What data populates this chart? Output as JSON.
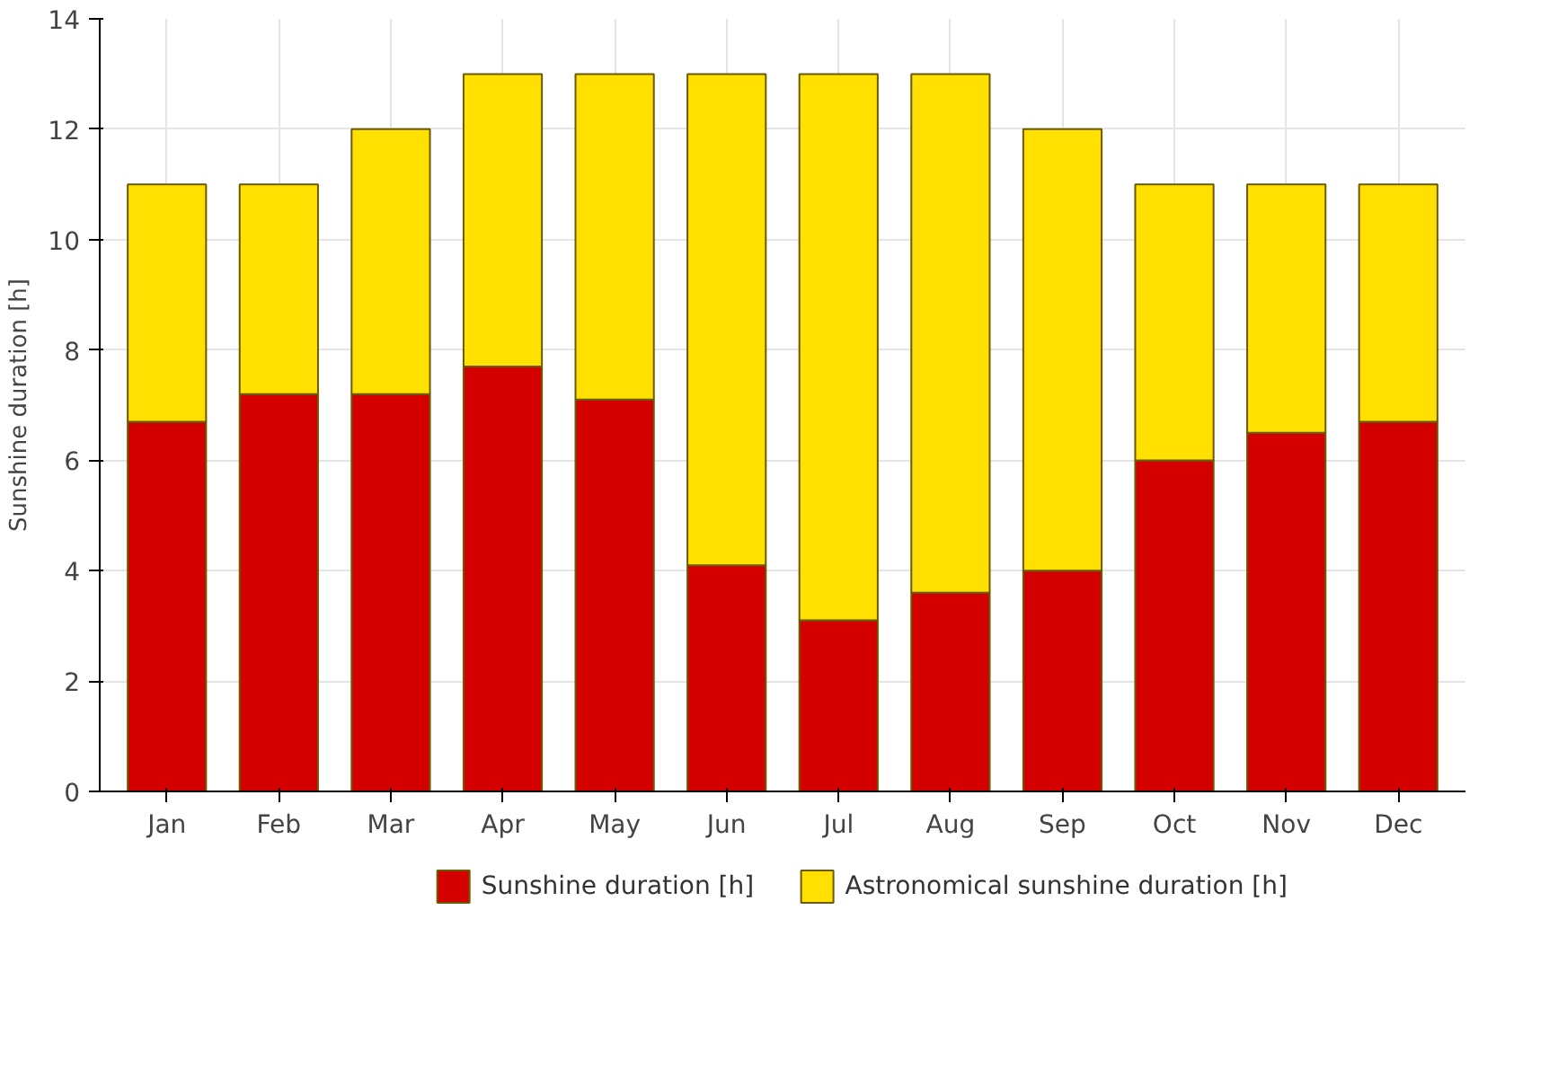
{
  "chart_data": {
    "type": "bar",
    "stacked": true,
    "ylabel": "Sunshine duration [h]",
    "categories": [
      "Jan",
      "Feb",
      "Mar",
      "Apr",
      "May",
      "Jun",
      "Jul",
      "Aug",
      "Sep",
      "Oct",
      "Nov",
      "Dec"
    ],
    "series": [
      {
        "name": "Sunshine duration [h]",
        "color": "#d40000",
        "values": [
          6.7,
          7.2,
          7.2,
          7.7,
          7.1,
          4.1,
          3.1,
          3.6,
          4.0,
          6.0,
          6.5,
          6.7
        ]
      },
      {
        "name": "Astronomical sunshine duration [h]",
        "color": "#ffe000",
        "values": [
          4.3,
          3.8,
          4.8,
          5.3,
          5.9,
          8.9,
          9.9,
          9.4,
          8.0,
          5.0,
          4.5,
          4.3
        ]
      }
    ],
    "ylim": [
      0,
      14
    ],
    "yticks": [
      0,
      2,
      4,
      6,
      8,
      10,
      12,
      14
    ],
    "grid": true,
    "legend": "bottom"
  }
}
